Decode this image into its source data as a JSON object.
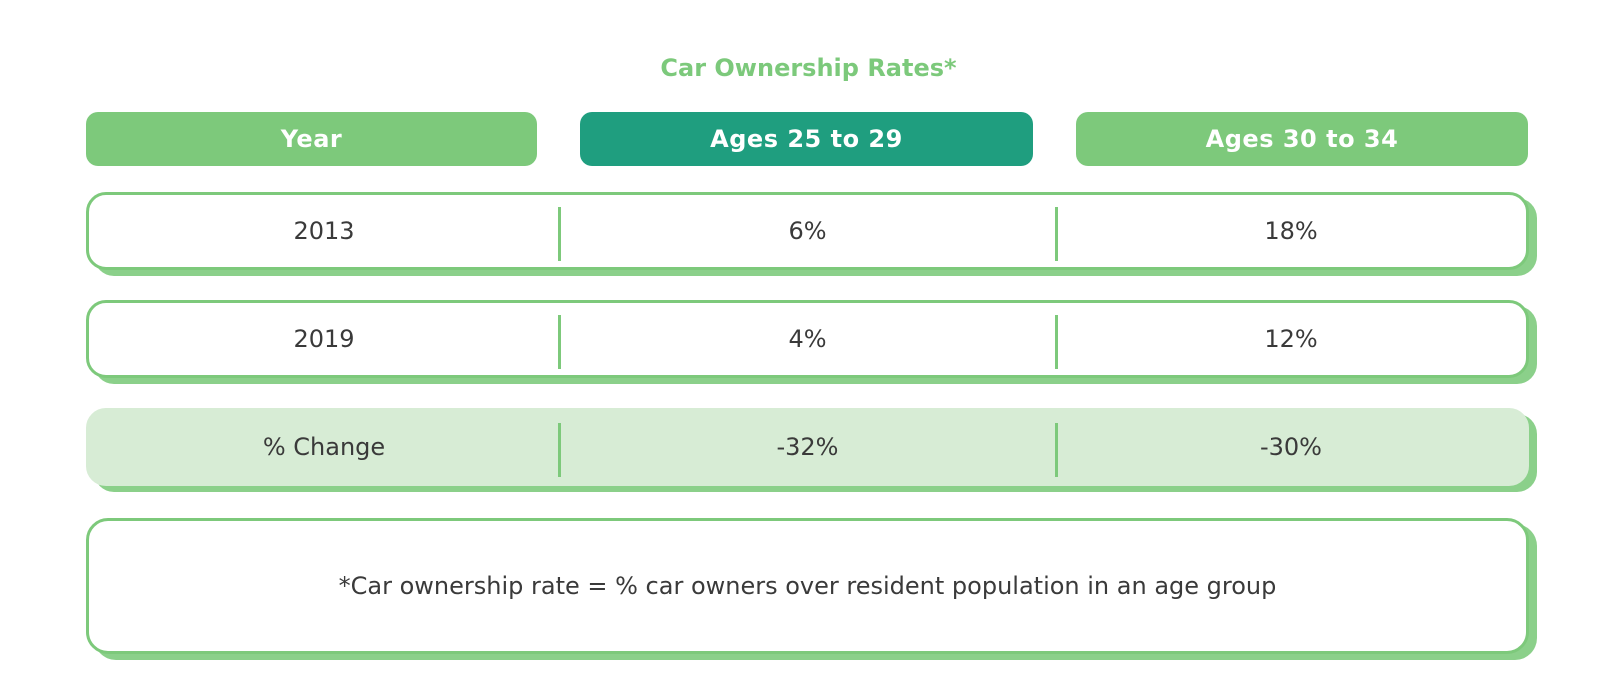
{
  "chart_data": {
    "type": "table",
    "title": "Car Ownership Rates*",
    "columns": [
      "Year",
      "Ages 25 to 29",
      "Ages 30 to 34"
    ],
    "rows": [
      [
        "2013",
        "6%",
        "18%"
      ],
      [
        "2019",
        "4%",
        "12%"
      ],
      [
        "% Change",
        "-32%",
        "-30%"
      ]
    ],
    "footnote": "*Car ownership rate = % car owners over resident population in an age group"
  },
  "colors": {
    "title": "#7cc97b",
    "header_light_green": "#7dc97b",
    "header_teal": "#1f9e7f",
    "change_row_fill": "#d7ecd5",
    "border": "#7dc97b",
    "text": "#3a3a3a"
  }
}
